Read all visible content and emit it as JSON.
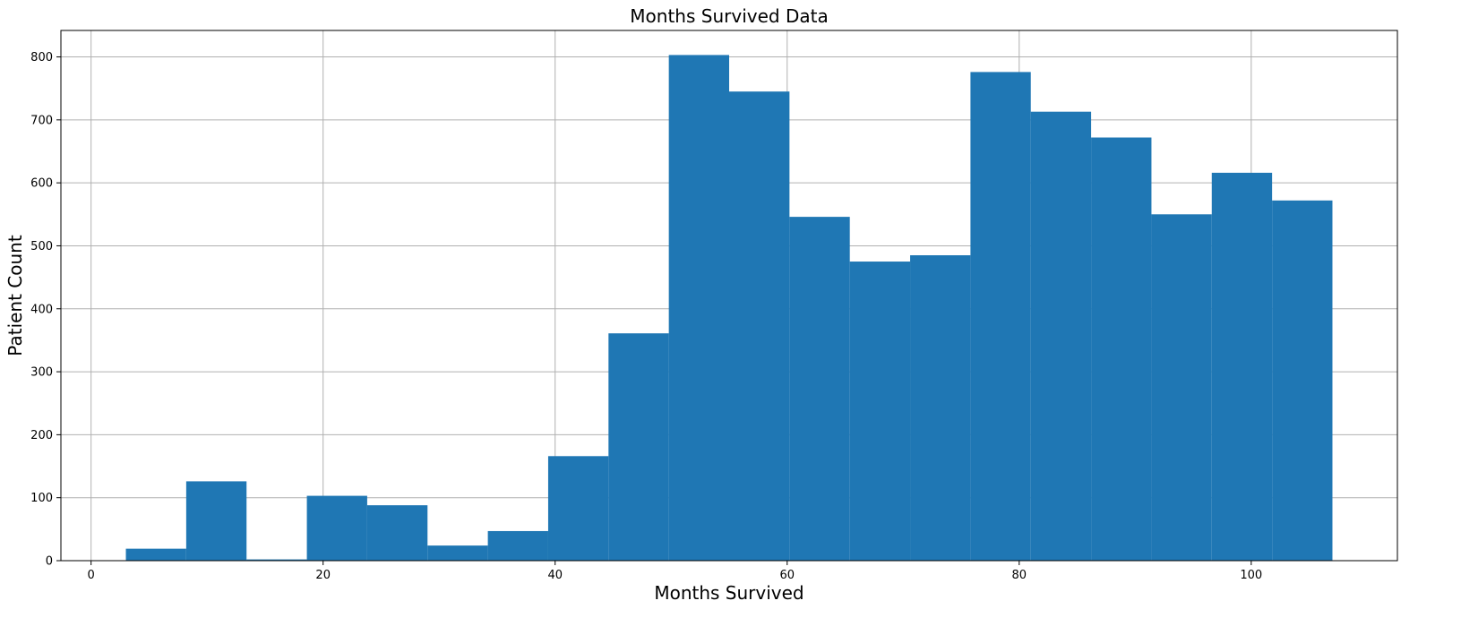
{
  "chart_data": {
    "type": "bar",
    "title": "Months Survived Data",
    "xlabel": "Months Survived",
    "ylabel": "Patient Count",
    "xlim": [
      -2.6,
      112.6
    ],
    "ylim": [
      0,
      842
    ],
    "grid": true,
    "x_ticks": [
      0,
      20,
      40,
      60,
      80,
      100
    ],
    "y_ticks": [
      0,
      100,
      200,
      300,
      400,
      500,
      600,
      700,
      800
    ],
    "bin_width": 5.2,
    "bins_start": [
      3.0,
      8.2,
      13.4,
      18.6,
      23.8,
      29.0,
      34.2,
      39.4,
      44.6,
      49.8,
      55.0,
      60.2,
      65.4,
      70.6,
      75.8,
      81.0,
      86.2,
      91.4,
      96.6,
      101.8
    ],
    "values": [
      19,
      126,
      2,
      103,
      88,
      24,
      47,
      166,
      361,
      803,
      745,
      546,
      475,
      485,
      776,
      713,
      672,
      550,
      616,
      572
    ],
    "bar_color": "#1f77b4",
    "grid_color": "#b0b0b0"
  }
}
